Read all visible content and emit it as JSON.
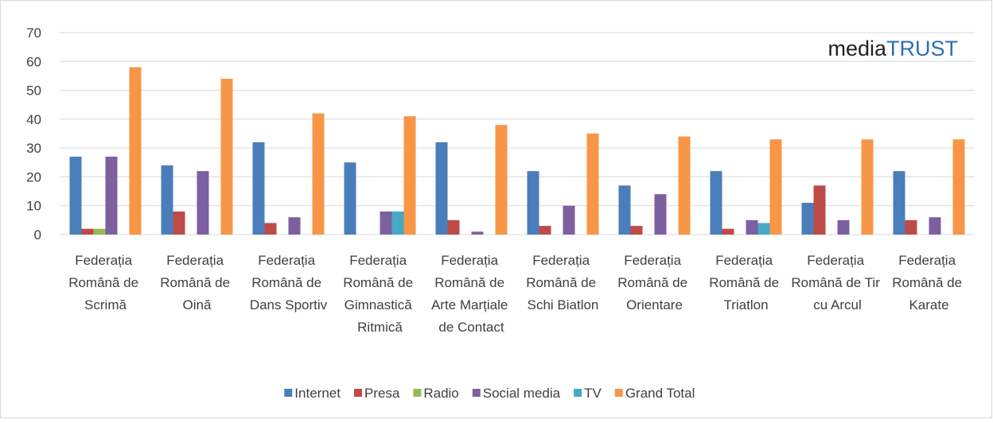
{
  "chart_data": {
    "type": "bar",
    "logo": [
      "media",
      "TRUST"
    ],
    "categories": [
      "Federația Română de Scrimă",
      "Federația Română de Oină",
      "Federația Română de Dans Sportiv",
      "Federația Română de Gimnastică Ritmică",
      "Federația Română de Arte Marțiale de Contact",
      "Federația Română de Schi Biatlon",
      "Federația Română de Orientare",
      "Federația Română de Triatlon",
      "Federația Română de Tir cu Arcul",
      "Federația Română de Karate"
    ],
    "series": [
      {
        "name": "Internet",
        "color": "#4a7ebb",
        "values": [
          27,
          24,
          32,
          25,
          32,
          22,
          17,
          22,
          11,
          22
        ]
      },
      {
        "name": "Presa",
        "color": "#be4b48",
        "values": [
          2,
          8,
          4,
          0,
          5,
          3,
          3,
          2,
          17,
          5
        ]
      },
      {
        "name": "Radio",
        "color": "#98b954",
        "values": [
          2,
          0,
          0,
          0,
          0,
          0,
          0,
          0,
          0,
          0
        ]
      },
      {
        "name": "Social media",
        "color": "#7d60a0",
        "values": [
          27,
          22,
          6,
          8,
          1,
          10,
          14,
          5,
          5,
          6
        ]
      },
      {
        "name": "TV",
        "color": "#46aac5",
        "values": [
          0,
          0,
          0,
          8,
          0,
          0,
          0,
          4,
          0,
          0
        ]
      },
      {
        "name": "Grand Total",
        "color": "#f79646",
        "values": [
          58,
          54,
          42,
          41,
          38,
          35,
          34,
          33,
          33,
          33
        ]
      }
    ],
    "ylim": [
      0,
      70
    ],
    "yticks": [
      0,
      10,
      20,
      30,
      40,
      50,
      60,
      70
    ],
    "grid": true,
    "legend": "bottom"
  }
}
